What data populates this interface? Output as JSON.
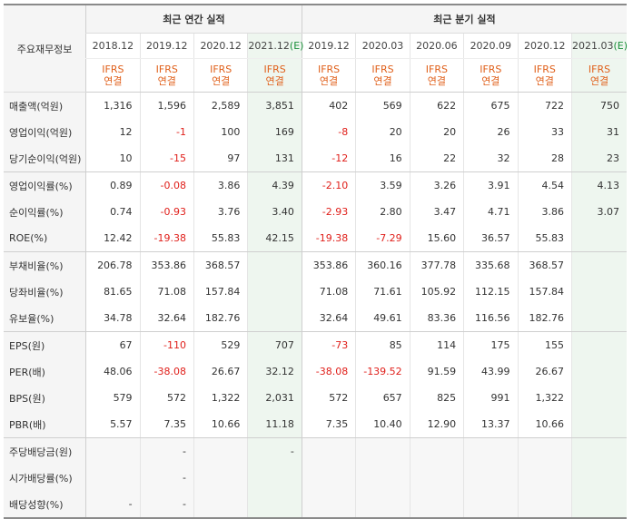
{
  "header": {
    "row_label": "주요재무정보",
    "annual_group": "최근 연간 실적",
    "quarterly_group": "최근 분기 실적",
    "annual_periods": [
      "2018.12",
      "2019.12",
      "2020.12",
      "2021.12"
    ],
    "annual_est_mark": "(E)",
    "quarterly_periods": [
      "2019.12",
      "2020.03",
      "2020.06",
      "2020.09",
      "2020.12",
      "2021.03"
    ],
    "quarterly_est_mark": "(E)",
    "basis_line1": "IFRS",
    "basis_line2": "연결"
  },
  "rows": [
    {
      "label": "매출액(억원)",
      "annual": [
        "1,316",
        "1,596",
        "2,589",
        "3,851"
      ],
      "quarterly": [
        "402",
        "569",
        "622",
        "675",
        "722",
        "750"
      ]
    },
    {
      "label": "영업이익(억원)",
      "annual": [
        "12",
        "-1",
        "100",
        "169"
      ],
      "quarterly": [
        "-8",
        "20",
        "20",
        "26",
        "33",
        "31"
      ]
    },
    {
      "label": "당기순이익(억원)",
      "annual": [
        "10",
        "-15",
        "97",
        "131"
      ],
      "quarterly": [
        "-12",
        "16",
        "22",
        "32",
        "28",
        "23"
      ]
    },
    {
      "label": "영업이익률(%)",
      "annual": [
        "0.89",
        "-0.08",
        "3.86",
        "4.39"
      ],
      "quarterly": [
        "-2.10",
        "3.59",
        "3.26",
        "3.91",
        "4.54",
        "4.13"
      ]
    },
    {
      "label": "순이익률(%)",
      "annual": [
        "0.74",
        "-0.93",
        "3.76",
        "3.40"
      ],
      "quarterly": [
        "-2.93",
        "2.80",
        "3.47",
        "4.71",
        "3.86",
        "3.07"
      ]
    },
    {
      "label": "ROE(%)",
      "annual": [
        "12.42",
        "-19.38",
        "55.83",
        "42.15"
      ],
      "quarterly": [
        "-19.38",
        "-7.29",
        "15.60",
        "36.57",
        "55.83",
        ""
      ]
    },
    {
      "label": "부채비율(%)",
      "annual": [
        "206.78",
        "353.86",
        "368.57",
        ""
      ],
      "quarterly": [
        "353.86",
        "360.16",
        "377.78",
        "335.68",
        "368.57",
        ""
      ]
    },
    {
      "label": "당좌비율(%)",
      "annual": [
        "81.65",
        "71.08",
        "157.84",
        ""
      ],
      "quarterly": [
        "71.08",
        "71.61",
        "105.92",
        "112.15",
        "157.84",
        ""
      ]
    },
    {
      "label": "유보율(%)",
      "annual": [
        "34.78",
        "32.64",
        "182.76",
        ""
      ],
      "quarterly": [
        "32.64",
        "49.61",
        "83.36",
        "116.56",
        "182.76",
        ""
      ]
    },
    {
      "label": "EPS(원)",
      "annual": [
        "67",
        "-110",
        "529",
        "707"
      ],
      "quarterly": [
        "-73",
        "85",
        "114",
        "175",
        "155",
        ""
      ]
    },
    {
      "label": "PER(배)",
      "annual": [
        "48.06",
        "-38.08",
        "26.67",
        "32.12"
      ],
      "quarterly": [
        "-38.08",
        "-139.52",
        "91.59",
        "43.99",
        "26.67",
        ""
      ]
    },
    {
      "label": "BPS(원)",
      "annual": [
        "579",
        "572",
        "1,322",
        "2,031"
      ],
      "quarterly": [
        "572",
        "657",
        "825",
        "991",
        "1,322",
        ""
      ]
    },
    {
      "label": "PBR(배)",
      "annual": [
        "5.57",
        "7.35",
        "10.66",
        "11.18"
      ],
      "quarterly": [
        "7.35",
        "10.40",
        "12.90",
        "13.37",
        "10.66",
        ""
      ]
    },
    {
      "label": "주당배당금(원)",
      "annual": [
        "",
        "-",
        "",
        "-"
      ],
      "quarterly": [
        "",
        "",
        "",
        "",
        "",
        ""
      ]
    },
    {
      "label": "시가배당률(%)",
      "annual": [
        "",
        "-",
        "",
        ""
      ],
      "quarterly": [
        "",
        "",
        "",
        "",
        "",
        ""
      ]
    },
    {
      "label": "배당성향(%)",
      "annual": [
        "-",
        "-",
        "",
        ""
      ],
      "quarterly": [
        "",
        "",
        "",
        "",
        "",
        ""
      ]
    }
  ],
  "colors": {
    "negative": "#e0201b",
    "basis": "#e0601b",
    "estimate_mark": "#1a8f3a",
    "estimate_bg": "#eef6ef"
  }
}
